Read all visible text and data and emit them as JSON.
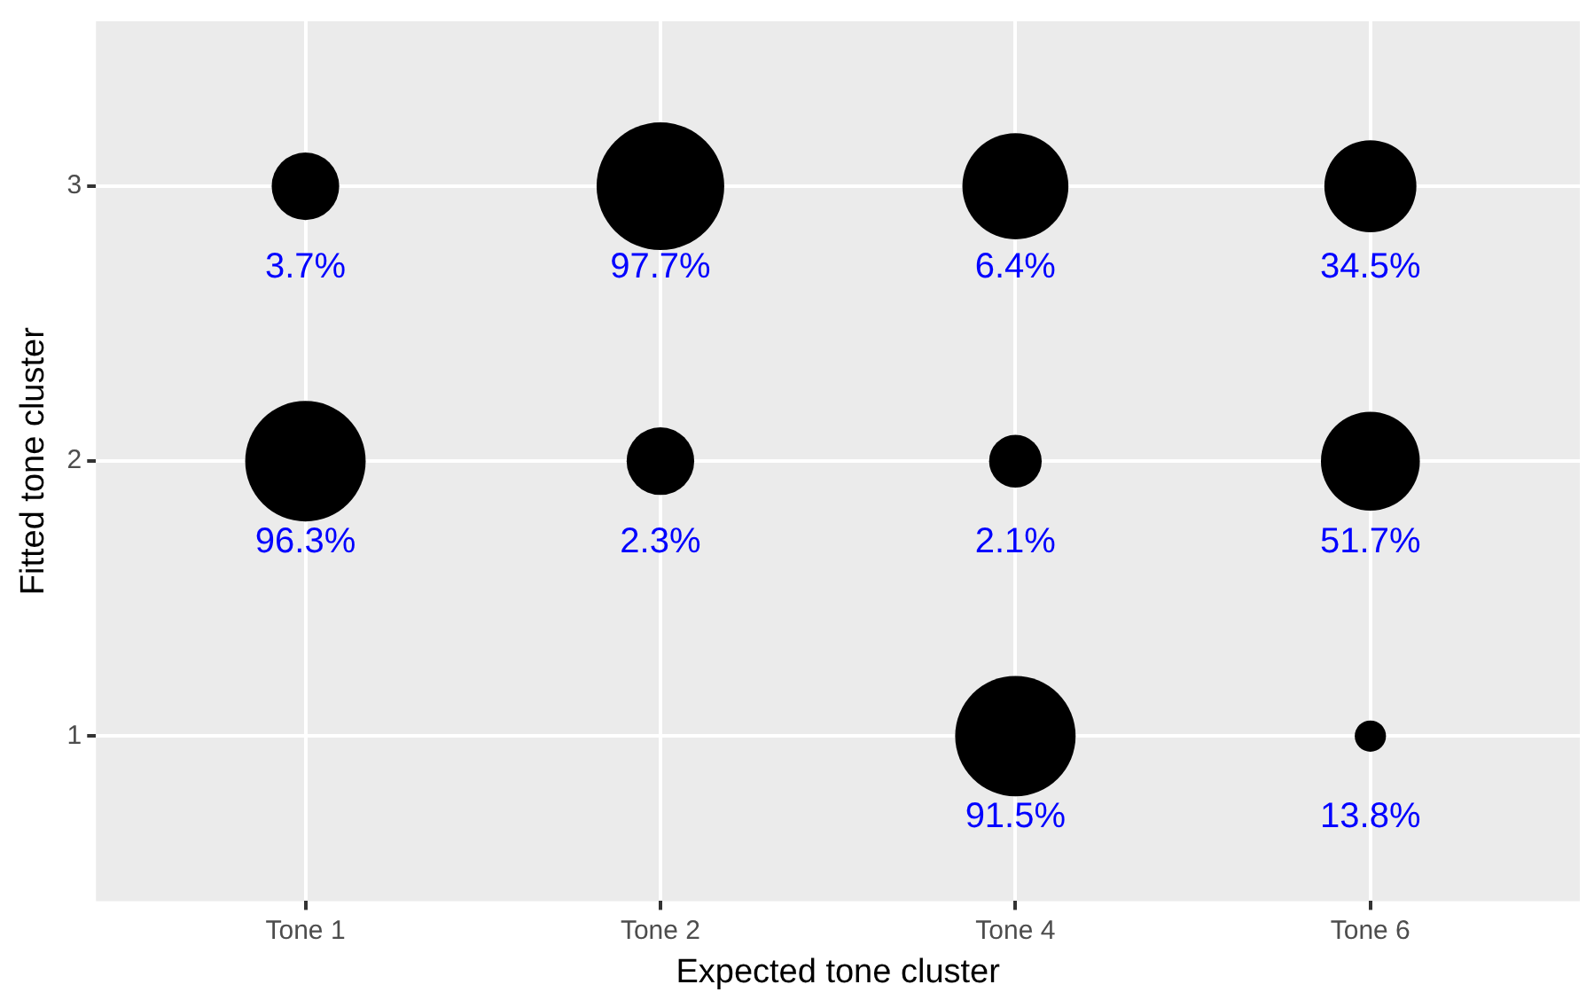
{
  "chart_data": {
    "type": "bubble",
    "xlabel": "Expected tone cluster",
    "ylabel": "Fitted tone cluster",
    "categories": [
      "Tone 1",
      "Tone 2",
      "Tone 4",
      "Tone 6"
    ],
    "series": [
      {
        "color": "#000000",
        "x": [
          "Tone 1",
          "Tone 1",
          "Tone 2",
          "Tone 2",
          "Tone 4",
          "Tone 4",
          "Tone 4",
          "Tone 6",
          "Tone 6",
          "Tone 6"
        ],
        "values": [
          3,
          2,
          3,
          2,
          3,
          2,
          1,
          3,
          2,
          1
        ],
        "sizes": [
          0.28,
          0.89,
          1,
          0.28,
          0.69,
          0.17,
          0.89,
          0.52,
          0.6,
          0.06
        ]
      }
    ],
    "annotations": [
      {
        "text": "3.7%",
        "x": "Tone 1",
        "y": 3
      },
      {
        "text": "96.3%",
        "x": "Tone 1",
        "y": 2
      },
      {
        "text": "97.7%",
        "x": "Tone 2",
        "y": 3
      },
      {
        "text": "2.3%",
        "x": "Tone 2",
        "y": 2
      },
      {
        "text": "6.4%",
        "x": "Tone 4",
        "y": 3
      },
      {
        "text": "2.1%",
        "x": "Tone 4",
        "y": 2
      },
      {
        "text": "91.5%",
        "x": "Tone 4",
        "y": 1
      },
      {
        "text": "34.5%",
        "x": "Tone 6",
        "y": 3
      },
      {
        "text": "51.7%",
        "x": "Tone 6",
        "y": 2
      },
      {
        "text": "13.8%",
        "x": "Tone 6",
        "y": 1
      }
    ],
    "ylim": [
      0.4,
      3.6
    ],
    "yticks": [
      1,
      2,
      3
    ],
    "grid": true,
    "legend": false
  }
}
